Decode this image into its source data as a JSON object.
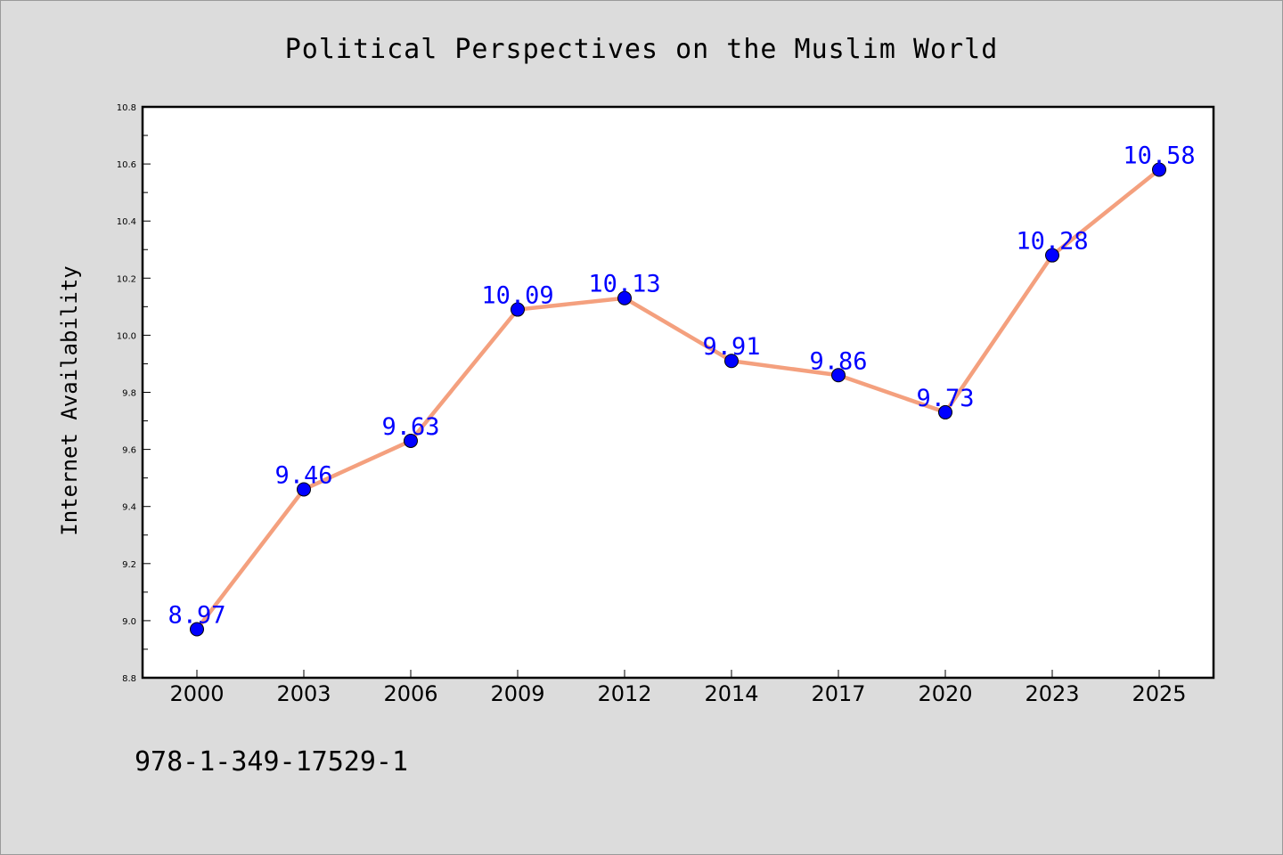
{
  "chart_data": {
    "type": "line",
    "title": "Political Perspectives on the Muslim World",
    "xlabel": "",
    "ylabel": "Internet Availability",
    "categories": [
      "2000",
      "2003",
      "2006",
      "2009",
      "2012",
      "2014",
      "2017",
      "2020",
      "2023",
      "2025"
    ],
    "series": [
      {
        "values": [
          8.97,
          9.46,
          9.63,
          10.09,
          10.13,
          9.91,
          9.86,
          9.73,
          10.28,
          10.58
        ],
        "labels": [
          "8.97",
          "9.46",
          "9.63",
          "10.09",
          "10.13",
          "9.91",
          "9.86",
          "9.73",
          "10.28",
          "10.58"
        ],
        "line_color": "#f4a07e",
        "marker_color": "#0000ff",
        "label_color": "#0000ff"
      }
    ],
    "ylim": [
      8.8,
      10.8
    ],
    "yticks": [
      "8.8",
      "9.0",
      "9.2",
      "9.4",
      "9.6",
      "9.8",
      "10.0",
      "10.2",
      "10.4",
      "10.6",
      "10.8"
    ],
    "grid": false,
    "legend": "none"
  },
  "footer": {
    "isbn": "978-1-349-17529-1"
  }
}
